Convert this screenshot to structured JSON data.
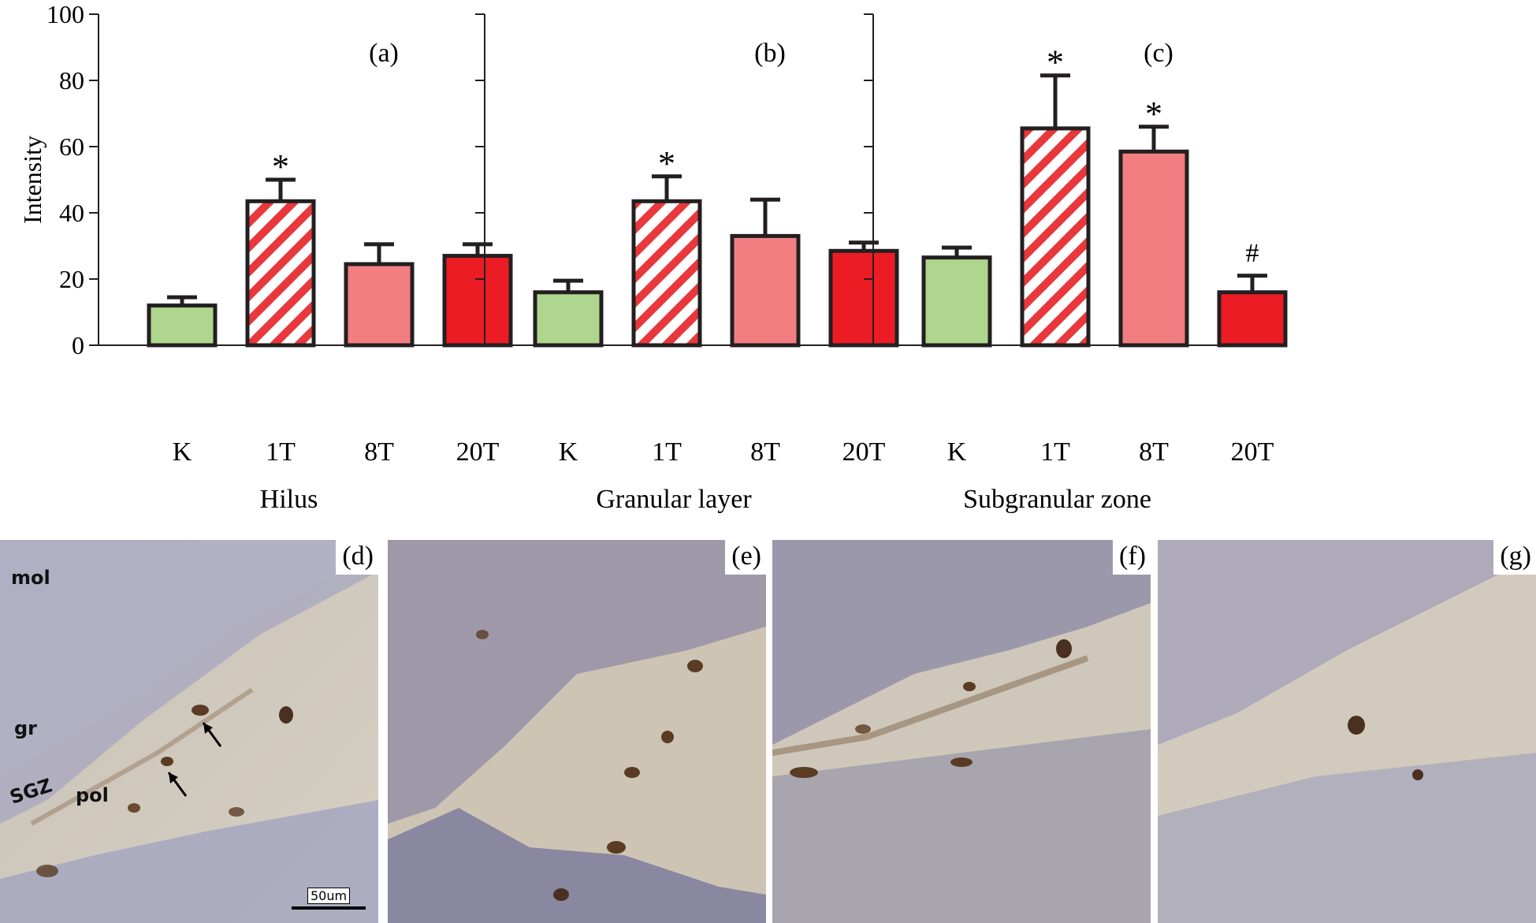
{
  "colors": {
    "K": "#aed68f",
    "1T_stripe": "#e8383c",
    "8T": "#f27e82",
    "20T": "#ec1c24",
    "outline": "#231f20"
  },
  "chart_data": [
    {
      "type": "bar",
      "panel": "(a)",
      "xlabel": "Hilus",
      "ylabel": "Intensity",
      "ylim": [
        0,
        100
      ],
      "yticks": [
        0,
        20,
        40,
        60,
        80,
        100
      ],
      "categories": [
        "K",
        "1T",
        "8T",
        "20T"
      ],
      "values": [
        12,
        43.5,
        24.5,
        27
      ],
      "errors": [
        2.5,
        6.5,
        6,
        3.5
      ],
      "marks": [
        "",
        "*",
        "",
        ""
      ]
    },
    {
      "type": "bar",
      "panel": "(b)",
      "xlabel": "Granular layer",
      "ylabel": "",
      "ylim": [
        0,
        100
      ],
      "yticks": [
        0,
        20,
        40,
        60,
        80,
        100
      ],
      "categories": [
        "K",
        "1T",
        "8T",
        "20T"
      ],
      "values": [
        16,
        43.5,
        33,
        28.5
      ],
      "errors": [
        3.5,
        7.5,
        11,
        2.5
      ],
      "marks": [
        "",
        "*",
        "",
        ""
      ]
    },
    {
      "type": "bar",
      "panel": "(c)",
      "xlabel": "Subgranular zone",
      "ylabel": "",
      "ylim": [
        0,
        100
      ],
      "yticks": [
        0,
        20,
        40,
        60,
        80,
        100
      ],
      "categories": [
        "K",
        "1T",
        "8T",
        "20T"
      ],
      "values": [
        26.5,
        65.5,
        58.5,
        16
      ],
      "errors": [
        3,
        16,
        7.5,
        5
      ],
      "marks": [
        "",
        "*",
        "*",
        "#"
      ]
    }
  ],
  "micrographs": [
    {
      "tag": "(d)",
      "labels": [
        "mol",
        "gr",
        "SGZ",
        "pol"
      ],
      "scale": "50um"
    },
    {
      "tag": "(e)"
    },
    {
      "tag": "(f)"
    },
    {
      "tag": "(g)"
    }
  ]
}
